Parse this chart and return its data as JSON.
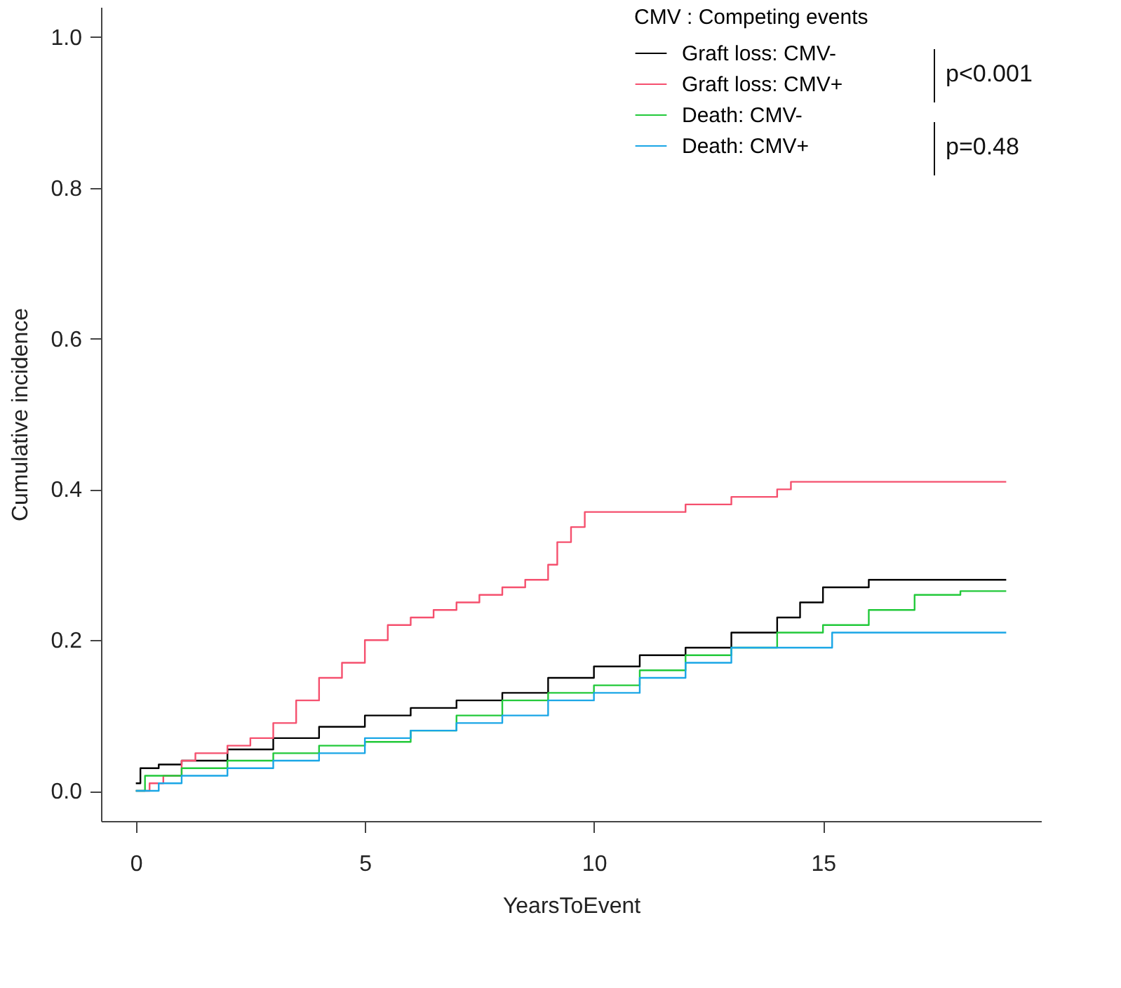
{
  "chart_data": {
    "type": "step",
    "xlabel": "YearsToEvent",
    "ylabel": "Cumulative incidence",
    "legend_title": "CMV : Competing events",
    "legend": "top right",
    "grid": false,
    "xlim": [
      -0.76,
      19.76
    ],
    "ylim": [
      -0.04,
      1.04
    ],
    "xticks": [
      0,
      5,
      10,
      15
    ],
    "yticks": [
      {
        "value": 0,
        "label": "0.0"
      },
      {
        "value": 0.2,
        "label": "0.2"
      },
      {
        "value": 0.4,
        "label": "0.4"
      },
      {
        "value": 0.6,
        "label": "0.6"
      },
      {
        "value": 0.8,
        "label": "0.8"
      },
      {
        "value": 1,
        "label": "1.0"
      }
    ],
    "annotations": [
      "p<0.001",
      "p=0.48"
    ],
    "series": [
      {
        "name": "Graft loss: CMV-",
        "color": "#000000",
        "x": [
          0,
          0.1,
          0.5,
          1,
          2,
          3,
          4,
          5,
          6,
          7,
          8,
          9,
          10,
          11,
          12,
          13,
          14,
          14.5,
          15,
          16,
          19
        ],
        "values": [
          0.01,
          0.03,
          0.035,
          0.04,
          0.055,
          0.07,
          0.085,
          0.1,
          0.11,
          0.12,
          0.13,
          0.15,
          0.165,
          0.18,
          0.19,
          0.21,
          0.23,
          0.25,
          0.27,
          0.28,
          0.28
        ]
      },
      {
        "name": "Graft loss: CMV+",
        "color": "#f5506e",
        "x": [
          0,
          0.3,
          0.6,
          1,
          1.3,
          2,
          2.5,
          3,
          3.5,
          4,
          4.5,
          5,
          5.5,
          6,
          6.5,
          7,
          7.5,
          8,
          8.5,
          9,
          9.2,
          9.5,
          9.8,
          11,
          12,
          13,
          14,
          14.3,
          19
        ],
        "values": [
          0,
          0.01,
          0.02,
          0.04,
          0.05,
          0.06,
          0.07,
          0.09,
          0.12,
          0.15,
          0.17,
          0.2,
          0.22,
          0.23,
          0.24,
          0.25,
          0.26,
          0.27,
          0.28,
          0.3,
          0.33,
          0.35,
          0.37,
          0.37,
          0.38,
          0.39,
          0.4,
          0.41,
          0.41
        ]
      },
      {
        "name": "Death: CMV-",
        "color": "#22c93a",
        "x": [
          0,
          0.2,
          1,
          2,
          3,
          4,
          5,
          6,
          7,
          8,
          9,
          10,
          11,
          12,
          13,
          14,
          15,
          16,
          17,
          18,
          19
        ],
        "values": [
          0,
          0.02,
          0.03,
          0.04,
          0.05,
          0.06,
          0.065,
          0.08,
          0.1,
          0.12,
          0.13,
          0.14,
          0.16,
          0.18,
          0.19,
          0.21,
          0.22,
          0.24,
          0.26,
          0.265,
          0.265
        ]
      },
      {
        "name": "Death: CMV+",
        "color": "#1aa6e6",
        "x": [
          0,
          0.5,
          1,
          2,
          3,
          4,
          5,
          6,
          7,
          8,
          9,
          10,
          11,
          12,
          13,
          14,
          15,
          15.2,
          19
        ],
        "values": [
          0,
          0.01,
          0.02,
          0.03,
          0.04,
          0.05,
          0.07,
          0.08,
          0.09,
          0.1,
          0.12,
          0.13,
          0.15,
          0.17,
          0.19,
          0.19,
          0.19,
          0.21,
          0.21
        ]
      }
    ]
  }
}
